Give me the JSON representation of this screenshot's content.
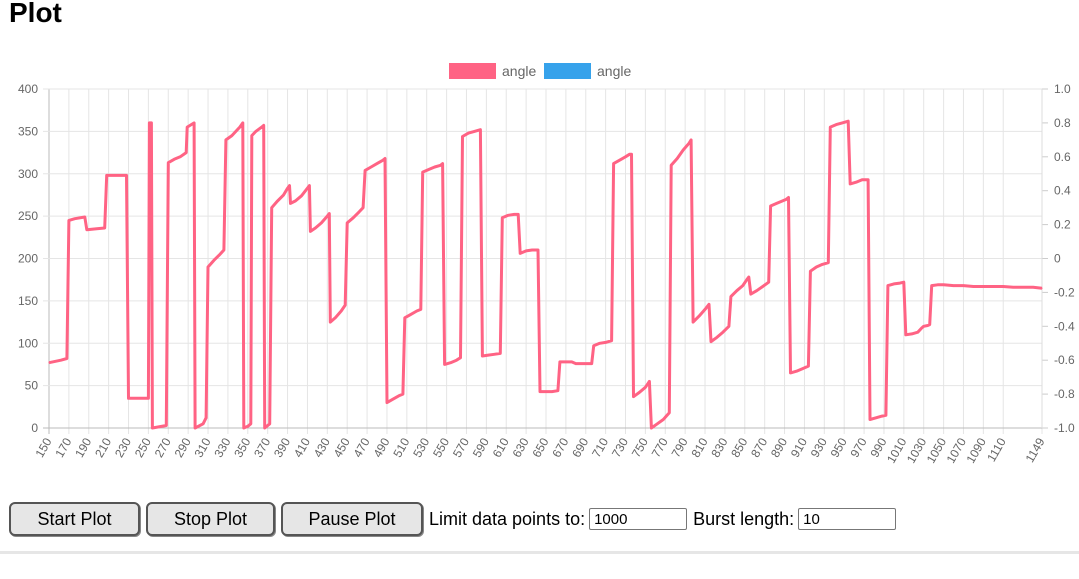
{
  "page": {
    "title": "Plot"
  },
  "controls": {
    "start_label": "Start Plot",
    "stop_label": "Stop Plot",
    "pause_label": "Pause Plot",
    "limit_label": "Limit data points to:",
    "limit_value": "1000",
    "burst_label": "Burst length:",
    "burst_value": "10"
  },
  "chart_data": {
    "type": "line",
    "title": "",
    "legend": {
      "position": "top",
      "entries": [
        {
          "name": "angle",
          "color": "#ff6384"
        },
        {
          "name": "angle",
          "color": "#36a2eb"
        }
      ]
    },
    "x_ticks": [
      "150",
      "170",
      "190",
      "210",
      "230",
      "250",
      "270",
      "290",
      "310",
      "330",
      "350",
      "370",
      "390",
      "410",
      "430",
      "450",
      "470",
      "490",
      "510",
      "530",
      "550",
      "570",
      "590",
      "610",
      "630",
      "650",
      "670",
      "690",
      "710",
      "730",
      "750",
      "770",
      "790",
      "810",
      "830",
      "850",
      "870",
      "890",
      "910",
      "930",
      "950",
      "970",
      "990",
      "1010",
      "1030",
      "1050",
      "1070",
      "1090",
      "1110",
      "1149"
    ],
    "xlim": [
      150,
      1149
    ],
    "y_left": {
      "ticks": [
        "0",
        "50",
        "100",
        "150",
        "200",
        "250",
        "300",
        "350",
        "400"
      ],
      "ylim": [
        0,
        400
      ]
    },
    "y_right": {
      "ticks": [
        "-1.0",
        "-0.8",
        "-0.6",
        "-0.4",
        "-0.2",
        "0",
        "0.2",
        "0.4",
        "0.6",
        "0.8",
        "1.0"
      ],
      "ylim": [
        -1,
        1
      ]
    },
    "grid": true,
    "series": [
      {
        "name": "angle",
        "color": "#ff6384",
        "axis": "left",
        "points": [
          [
            150,
            77
          ],
          [
            162,
            80
          ],
          [
            168,
            82
          ],
          [
            170,
            245
          ],
          [
            176,
            247
          ],
          [
            186,
            249
          ],
          [
            188,
            234
          ],
          [
            198,
            235
          ],
          [
            206,
            236
          ],
          [
            208,
            298
          ],
          [
            224,
            298
          ],
          [
            228,
            298
          ],
          [
            230,
            35
          ],
          [
            250,
            35
          ],
          [
            251,
            360
          ],
          [
            253,
            360
          ],
          [
            254,
            0
          ],
          [
            268,
            3
          ],
          [
            270,
            313
          ],
          [
            276,
            317
          ],
          [
            282,
            320
          ],
          [
            288,
            325
          ],
          [
            289,
            355
          ],
          [
            296,
            360
          ],
          [
            297,
            0
          ],
          [
            305,
            5
          ],
          [
            308,
            12
          ],
          [
            310,
            190
          ],
          [
            316,
            198
          ],
          [
            322,
            205
          ],
          [
            326,
            210
          ],
          [
            328,
            340
          ],
          [
            334,
            345
          ],
          [
            342,
            355
          ],
          [
            345,
            360
          ],
          [
            346,
            0
          ],
          [
            350,
            2
          ],
          [
            353,
            5
          ],
          [
            354,
            345
          ],
          [
            358,
            350
          ],
          [
            364,
            355
          ],
          [
            366,
            357
          ],
          [
            367,
            0
          ],
          [
            372,
            5
          ],
          [
            374,
            260
          ],
          [
            380,
            268
          ],
          [
            386,
            275
          ],
          [
            390,
            283
          ],
          [
            392,
            286
          ],
          [
            393,
            265
          ],
          [
            398,
            268
          ],
          [
            404,
            274
          ],
          [
            408,
            280
          ],
          [
            412,
            286
          ],
          [
            413,
            232
          ],
          [
            418,
            236
          ],
          [
            424,
            242
          ],
          [
            430,
            250
          ],
          [
            432,
            253
          ],
          [
            433,
            125
          ],
          [
            438,
            130
          ],
          [
            444,
            138
          ],
          [
            448,
            145
          ],
          [
            450,
            242
          ],
          [
            456,
            248
          ],
          [
            462,
            255
          ],
          [
            466,
            260
          ],
          [
            468,
            304
          ],
          [
            474,
            308
          ],
          [
            480,
            312
          ],
          [
            486,
            316
          ],
          [
            488,
            318
          ],
          [
            490,
            30
          ],
          [
            496,
            34
          ],
          [
            502,
            38
          ],
          [
            506,
            40
          ],
          [
            508,
            130
          ],
          [
            514,
            134
          ],
          [
            520,
            138
          ],
          [
            524,
            140
          ],
          [
            526,
            302
          ],
          [
            532,
            305
          ],
          [
            538,
            308
          ],
          [
            544,
            310
          ],
          [
            546,
            312
          ],
          [
            548,
            75
          ],
          [
            554,
            77
          ],
          [
            560,
            80
          ],
          [
            564,
            83
          ],
          [
            566,
            344
          ],
          [
            572,
            348
          ],
          [
            578,
            350
          ],
          [
            584,
            352
          ],
          [
            586,
            85
          ],
          [
            592,
            86
          ],
          [
            598,
            87
          ],
          [
            604,
            88
          ],
          [
            606,
            248
          ],
          [
            612,
            251
          ],
          [
            618,
            252
          ],
          [
            622,
            252
          ],
          [
            624,
            206
          ],
          [
            630,
            209
          ],
          [
            636,
            210
          ],
          [
            642,
            210
          ],
          [
            644,
            43
          ],
          [
            650,
            43
          ],
          [
            656,
            43
          ],
          [
            662,
            44
          ],
          [
            664,
            78
          ],
          [
            676,
            78
          ],
          [
            680,
            76
          ],
          [
            696,
            76
          ],
          [
            698,
            97
          ],
          [
            704,
            100
          ],
          [
            710,
            101
          ],
          [
            716,
            103
          ],
          [
            718,
            312
          ],
          [
            724,
            316
          ],
          [
            730,
            320
          ],
          [
            734,
            323
          ],
          [
            736,
            323
          ],
          [
            738,
            37
          ],
          [
            744,
            42
          ],
          [
            750,
            48
          ],
          [
            754,
            55
          ],
          [
            756,
            0
          ],
          [
            762,
            5
          ],
          [
            768,
            10
          ],
          [
            774,
            18
          ],
          [
            776,
            310
          ],
          [
            782,
            318
          ],
          [
            788,
            328
          ],
          [
            794,
            336
          ],
          [
            796,
            340
          ],
          [
            798,
            125
          ],
          [
            804,
            132
          ],
          [
            810,
            140
          ],
          [
            814,
            146
          ],
          [
            816,
            102
          ],
          [
            822,
            107
          ],
          [
            828,
            113
          ],
          [
            834,
            120
          ],
          [
            836,
            155
          ],
          [
            842,
            162
          ],
          [
            848,
            168
          ],
          [
            852,
            175
          ],
          [
            854,
            178
          ],
          [
            856,
            158
          ],
          [
            862,
            162
          ],
          [
            868,
            167
          ],
          [
            874,
            172
          ],
          [
            876,
            262
          ],
          [
            882,
            265
          ],
          [
            888,
            268
          ],
          [
            892,
            270
          ],
          [
            894,
            272
          ],
          [
            896,
            65
          ],
          [
            902,
            67
          ],
          [
            908,
            70
          ],
          [
            914,
            73
          ],
          [
            916,
            185
          ],
          [
            922,
            190
          ],
          [
            928,
            193
          ],
          [
            934,
            195
          ],
          [
            936,
            355
          ],
          [
            942,
            358
          ],
          [
            948,
            360
          ],
          [
            954,
            362
          ],
          [
            956,
            288
          ],
          [
            962,
            290
          ],
          [
            968,
            293
          ],
          [
            974,
            293
          ],
          [
            976,
            10
          ],
          [
            982,
            12
          ],
          [
            988,
            14
          ],
          [
            992,
            15
          ],
          [
            994,
            168
          ],
          [
            1000,
            170
          ],
          [
            1006,
            171
          ],
          [
            1010,
            172
          ],
          [
            1012,
            110
          ],
          [
            1018,
            111
          ],
          [
            1024,
            113
          ],
          [
            1028,
            118
          ],
          [
            1030,
            120
          ],
          [
            1034,
            121
          ],
          [
            1036,
            122
          ],
          [
            1038,
            168
          ],
          [
            1044,
            169
          ],
          [
            1050,
            169
          ],
          [
            1060,
            168
          ],
          [
            1070,
            168
          ],
          [
            1080,
            167
          ],
          [
            1090,
            167
          ],
          [
            1100,
            167
          ],
          [
            1110,
            167
          ],
          [
            1120,
            166
          ],
          [
            1130,
            166
          ],
          [
            1140,
            166
          ],
          [
            1149,
            165
          ]
        ]
      }
    ]
  }
}
